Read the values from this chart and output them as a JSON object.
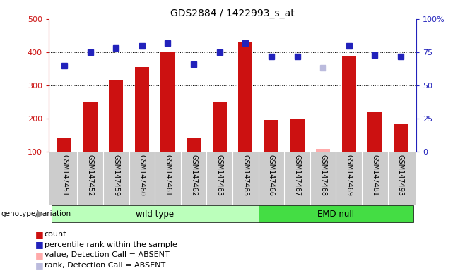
{
  "title": "GDS2884 / 1422993_s_at",
  "samples": [
    "GSM147451",
    "GSM147452",
    "GSM147459",
    "GSM147460",
    "GSM147461",
    "GSM147462",
    "GSM147463",
    "GSM147465",
    "GSM147466",
    "GSM147467",
    "GSM147468",
    "GSM147469",
    "GSM147481",
    "GSM147493"
  ],
  "wt_count": 8,
  "emd_count": 6,
  "count": [
    140,
    250,
    315,
    355,
    400,
    140,
    248,
    430,
    195,
    200,
    null,
    390,
    220,
    183
  ],
  "count_absent": [
    null,
    null,
    null,
    null,
    null,
    null,
    null,
    null,
    null,
    null,
    108,
    null,
    null,
    null
  ],
  "percentile_rank": [
    65,
    75,
    78,
    80,
    82,
    66,
    75,
    82,
    72,
    72,
    null,
    80,
    73,
    72
  ],
  "percentile_rank_absent": [
    null,
    null,
    null,
    null,
    null,
    null,
    null,
    null,
    null,
    null,
    63,
    null,
    null,
    null
  ],
  "ylim_left": [
    100,
    500
  ],
  "ylim_right": [
    0,
    100
  ],
  "yticks_left": [
    100,
    200,
    300,
    400,
    500
  ],
  "yticks_right": [
    0,
    25,
    50,
    75,
    100
  ],
  "bar_color": "#cc1111",
  "bar_color_absent": "#ffaaaa",
  "dot_color": "#2222bb",
  "dot_color_absent": "#bbbbdd",
  "group_wt_color": "#bbffbb",
  "group_emd_color": "#44dd44",
  "ylabel_left_color": "#cc1111",
  "ylabel_right_color": "#2222bb",
  "grid_color": "#000000",
  "background_labels": "#cccccc",
  "legend_items": [
    {
      "color": "#cc1111",
      "label": "count"
    },
    {
      "color": "#2222bb",
      "label": "percentile rank within the sample"
    },
    {
      "color": "#ffaaaa",
      "label": "value, Detection Call = ABSENT"
    },
    {
      "color": "#bbbbdd",
      "label": "rank, Detection Call = ABSENT"
    }
  ]
}
